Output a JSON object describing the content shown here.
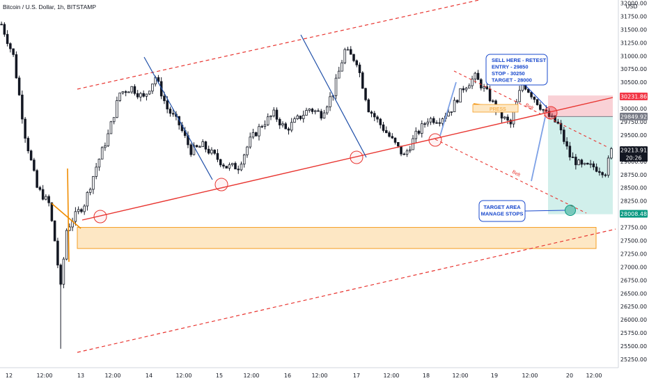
{
  "chart_data": {
    "type": "candlestick",
    "title": "Bitcoin / U.S. Dollar, 1h, BITSTAMP",
    "currency": "USD",
    "x_ticks": [
      "12",
      "12:00",
      "13",
      "12:00",
      "14",
      "12:00",
      "15",
      "12:00",
      "16",
      "12:00",
      "17",
      "12:00",
      "18",
      "12:00",
      "19",
      "12:00",
      "20",
      "12:00"
    ],
    "y_ticks": [
      32000,
      31750,
      31500,
      31250,
      31000,
      30750,
      30500,
      30250,
      30000,
      29750,
      29500,
      29250,
      29000,
      28750,
      28500,
      28250,
      28000,
      27750,
      27500,
      27250,
      27000,
      26750,
      26500,
      26250,
      26000,
      25750,
      25500,
      25250
    ],
    "y_tick_labels": [
      "32000.00",
      "31750.00",
      "31500.00",
      "31250.00",
      "31000.00",
      "30750.00",
      "30500.00",
      "30250.00",
      "30000.00",
      "29750.00",
      "29500.00",
      "29250.00",
      "29000.00",
      "28750.00",
      "28500.00",
      "28250.00",
      "28000.00",
      "27750.00",
      "27500.00",
      "27250.00",
      "27000.00",
      "26750.00",
      "26500.00",
      "26250.00",
      "26000.00",
      "25750.00",
      "25500.00",
      "25250.00"
    ],
    "ylim": [
      25100,
      32150
    ],
    "price_tags": [
      {
        "label": "30231.86",
        "value": 30231.86,
        "color": "#f23645"
      },
      {
        "label": "29849.92",
        "value": 29849.92,
        "color": "#787b86"
      },
      {
        "label": "29213.91",
        "value": 29213.91,
        "color": "#131722",
        "countdown": "20:26"
      },
      {
        "label": "28008.48",
        "value": 28008.48,
        "color": "#089981"
      }
    ],
    "candle_anchors": [
      [
        0,
        31600
      ],
      [
        4,
        31000
      ],
      [
        8,
        29500
      ],
      [
        12,
        28500
      ],
      [
        16,
        28200
      ],
      [
        18,
        27500
      ],
      [
        20,
        26600
      ],
      [
        22,
        27700
      ],
      [
        24,
        27900
      ],
      [
        28,
        28200
      ],
      [
        32,
        28900
      ],
      [
        36,
        29500
      ],
      [
        40,
        30300
      ],
      [
        44,
        30400
      ],
      [
        48,
        30200
      ],
      [
        52,
        30600
      ],
      [
        56,
        30000
      ],
      [
        60,
        29700
      ],
      [
        64,
        29200
      ],
      [
        68,
        29300
      ],
      [
        72,
        29100
      ],
      [
        76,
        28900
      ],
      [
        80,
        28900
      ],
      [
        84,
        29400
      ],
      [
        88,
        29700
      ],
      [
        92,
        29900
      ],
      [
        96,
        29600
      ],
      [
        100,
        29800
      ],
      [
        104,
        30000
      ],
      [
        108,
        29900
      ],
      [
        112,
        30300
      ],
      [
        116,
        31100
      ],
      [
        120,
        30900
      ],
      [
        124,
        30000
      ],
      [
        128,
        29700
      ],
      [
        132,
        29400
      ],
      [
        136,
        29100
      ],
      [
        140,
        29500
      ],
      [
        144,
        29800
      ],
      [
        148,
        29800
      ],
      [
        152,
        30000
      ],
      [
        156,
        30400
      ],
      [
        160,
        30600
      ],
      [
        164,
        30300
      ],
      [
        168,
        29900
      ],
      [
        172,
        29700
      ],
      [
        176,
        30500
      ],
      [
        180,
        30200
      ],
      [
        184,
        29900
      ],
      [
        188,
        29700
      ],
      [
        192,
        29100
      ],
      [
        196,
        28900
      ],
      [
        200,
        28900
      ],
      [
        204,
        28800
      ],
      [
        206,
        29200
      ]
    ],
    "annotations": {
      "sell_box": "SELL HERE - RETEST\nENTRY -   29850\nSTOP -     30250\nTARGET - 28000",
      "target_box": "TARGET AREA\nMANAGE STOPS",
      "compress_label": "PRESS",
      "belt_label_1": "Belt",
      "belt_label_2": "Belt"
    },
    "trade": {
      "entry": 29850,
      "stop": 30250,
      "target": 28000
    }
  },
  "colors": {
    "up": "#131722",
    "down": "#131722",
    "up_fill": "#ffffff",
    "support_line": "#e8342f",
    "channel": "#e8342f",
    "zone_fill": "#fde7c4",
    "zone_stroke": "#f59d21",
    "stop_fill": "#f8c9cf",
    "target_fill": "#c9ece8",
    "note": "#1848cc",
    "impulse": "#1f4fa8",
    "impulse_light": "#7da1e6",
    "orange": "#f08c00"
  }
}
